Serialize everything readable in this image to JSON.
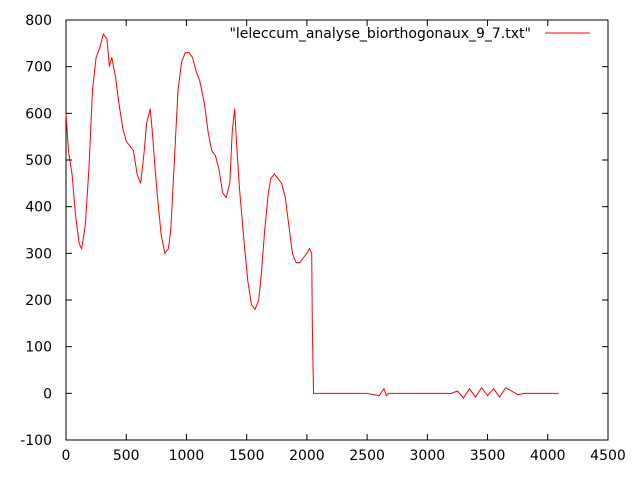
{
  "chart_data": {
    "type": "line",
    "title": "",
    "xlabel": "",
    "ylabel": "",
    "xlim": [
      0,
      4500
    ],
    "ylim": [
      -100,
      800
    ],
    "x_ticks": [
      0,
      500,
      1000,
      1500,
      2000,
      2500,
      3000,
      3500,
      4000,
      4500
    ],
    "y_ticks": [
      -100,
      0,
      100,
      200,
      300,
      400,
      500,
      600,
      700,
      800
    ],
    "x_tick_labels": [
      "0",
      "500",
      "1000",
      "1500",
      "2000",
      "2500",
      "3000",
      "3500",
      "4000",
      "4500"
    ],
    "y_tick_labels": [
      "-100",
      "0",
      "100",
      "200",
      "300",
      "400",
      "500",
      "600",
      "700",
      "800"
    ],
    "grid": false,
    "legend_position": "top-right",
    "series": [
      {
        "name": "\"leleccum_analyse_biorthogonaux_9_7.txt\"",
        "color": "#ff0000",
        "x": [
          0,
          20,
          50,
          80,
          110,
          130,
          160,
          190,
          220,
          250,
          280,
          310,
          340,
          360,
          380,
          410,
          440,
          470,
          500,
          530,
          560,
          590,
          620,
          650,
          670,
          700,
          720,
          740,
          760,
          790,
          820,
          850,
          870,
          900,
          930,
          960,
          990,
          1020,
          1050,
          1080,
          1110,
          1150,
          1180,
          1210,
          1240,
          1270,
          1300,
          1330,
          1360,
          1380,
          1400,
          1420,
          1440,
          1460,
          1480,
          1510,
          1540,
          1570,
          1600,
          1620,
          1650,
          1680,
          1700,
          1730,
          1760,
          1790,
          1820,
          1850,
          1880,
          1910,
          1940,
          1970,
          2000,
          2020,
          2040,
          2045,
          2055,
          2060,
          2100,
          2200,
          2300,
          2400,
          2500,
          2600,
          2640,
          2660,
          2680,
          2700,
          2800,
          2900,
          3000,
          3100,
          3200,
          3250,
          3300,
          3350,
          3400,
          3450,
          3500,
          3550,
          3600,
          3650,
          3700,
          3750,
          3800,
          3900,
          4000,
          4090
        ],
        "y": [
          600,
          520,
          470,
          380,
          320,
          310,
          360,
          480,
          650,
          720,
          740,
          770,
          760,
          700,
          720,
          680,
          620,
          570,
          540,
          530,
          520,
          470,
          450,
          520,
          580,
          610,
          550,
          480,
          420,
          340,
          300,
          310,
          350,
          500,
          650,
          710,
          730,
          730,
          720,
          690,
          670,
          620,
          560,
          520,
          510,
          480,
          430,
          420,
          450,
          560,
          610,
          520,
          440,
          380,
          320,
          240,
          190,
          180,
          200,
          250,
          350,
          430,
          460,
          470,
          460,
          450,
          420,
          360,
          300,
          280,
          280,
          290,
          300,
          310,
          300,
          150,
          0,
          0,
          0,
          0,
          0,
          0,
          0,
          -5,
          10,
          -5,
          0,
          0,
          0,
          0,
          0,
          0,
          0,
          5,
          -10,
          10,
          -8,
          12,
          -5,
          10,
          -8,
          12,
          5,
          -3,
          0,
          0,
          0,
          0
        ]
      }
    ]
  }
}
